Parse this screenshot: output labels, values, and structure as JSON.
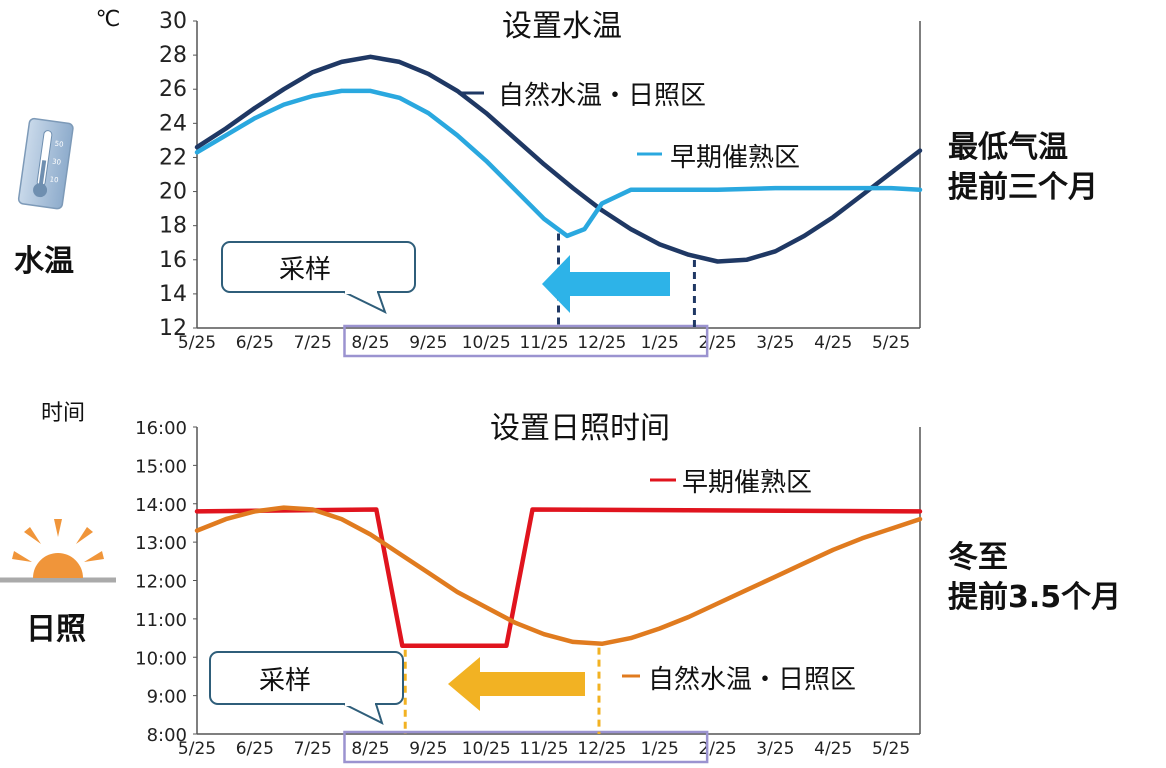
{
  "panels": {
    "top": {
      "unit_label": "℃",
      "side_label": "水温",
      "note_line1": "最低气温",
      "note_line2": "提前三个月",
      "callout": "采样"
    },
    "bottom": {
      "unit_label": "时间",
      "side_label": "日照",
      "note_line1": "冬至",
      "note_line2": "提前3.5个月",
      "callout": "采样"
    }
  },
  "colors": {
    "navy": "#1f3864",
    "light_blue": "#2aa8df",
    "red": "#e0141e",
    "orange": "#e07b1f",
    "blue_arrow": "#2db3e8",
    "yellow_arrow": "#f2b223",
    "callout_border": "#2f5e7a",
    "highlight_box": "#9b93d0",
    "thermo_blue": "#9cb8d4",
    "sun_orange": "#f0953a"
  },
  "icons": {
    "top": "thermometer-icon",
    "bottom": "sun-icon"
  },
  "chart_data": [
    {
      "type": "line",
      "title": "设置水温",
      "ylabel": "℃",
      "categories": [
        "5/25",
        "6/25",
        "7/25",
        "8/25",
        "9/25",
        "10/25",
        "11/25",
        "12/25",
        "1/25",
        "2/25",
        "3/25",
        "4/25",
        "5/25"
      ],
      "y_ticks": [
        "12",
        "14",
        "16",
        "18",
        "20",
        "22",
        "24",
        "26",
        "28",
        "30"
      ],
      "ylim": [
        12,
        30
      ],
      "series": [
        {
          "name": "自然水温・日照区",
          "color": "#1f3864",
          "x": [
            0,
            0.5,
            1,
            1.5,
            2,
            2.5,
            3,
            3.5,
            4,
            4.5,
            5,
            5.5,
            6,
            6.5,
            7,
            7.5,
            8,
            8.5,
            9,
            9.5,
            10,
            10.5,
            11,
            11.5,
            12,
            12.5
          ],
          "values": [
            22.6,
            23.7,
            24.9,
            26.0,
            27.0,
            27.6,
            27.9,
            27.6,
            26.9,
            25.9,
            24.6,
            23.1,
            21.6,
            20.2,
            18.9,
            17.8,
            16.9,
            16.3,
            15.9,
            16.0,
            16.5,
            17.4,
            18.5,
            19.8,
            21.1,
            22.4
          ]
        },
        {
          "name": "早期催熟区",
          "color": "#2aa8df",
          "x": [
            0,
            0.5,
            1,
            1.5,
            2,
            2.5,
            3,
            3.5,
            4,
            4.5,
            5,
            5.5,
            6,
            6.4,
            6.7,
            7,
            7.5,
            8,
            9,
            10,
            11,
            12,
            12.5
          ],
          "values": [
            22.3,
            23.3,
            24.3,
            25.1,
            25.6,
            25.9,
            25.9,
            25.5,
            24.6,
            23.3,
            21.8,
            20.1,
            18.4,
            17.4,
            17.8,
            19.3,
            20.1,
            20.1,
            20.1,
            20.2,
            20.2,
            20.2,
            20.1
          ]
        }
      ],
      "min_markers": [
        6.25,
        8.6
      ],
      "sampling_range": [
        2.55,
        8.82
      ]
    },
    {
      "type": "line",
      "title": "设置日照时间",
      "ylabel": "时间",
      "categories": [
        "5/25",
        "6/25",
        "7/25",
        "8/25",
        "9/25",
        "10/25",
        "11/25",
        "12/25",
        "1/25",
        "2/25",
        "3/25",
        "4/25",
        "5/25"
      ],
      "y_ticks": [
        "8:00",
        "9:00",
        "10:00",
        "11:00",
        "12:00",
        "13:00",
        "14:00",
        "15:00",
        "16:00"
      ],
      "ylim": [
        8,
        16
      ],
      "series": [
        {
          "name": "早期催熟区",
          "color": "#e0141e",
          "x": [
            0,
            3.1,
            3.55,
            5.35,
            5.8,
            12.5
          ],
          "values": [
            13.8,
            13.85,
            10.3,
            10.3,
            13.85,
            13.8
          ]
        },
        {
          "name": "自然水温・日照区",
          "color": "#e07b1f",
          "x": [
            0,
            0.5,
            1,
            1.5,
            2,
            2.5,
            3,
            3.5,
            4,
            4.5,
            5,
            5.5,
            6,
            6.5,
            7,
            7.5,
            8,
            8.5,
            9,
            9.5,
            10,
            10.5,
            11,
            11.5,
            12,
            12.5
          ],
          "values": [
            13.3,
            13.6,
            13.8,
            13.9,
            13.85,
            13.6,
            13.2,
            12.7,
            12.2,
            11.7,
            11.3,
            10.9,
            10.6,
            10.4,
            10.35,
            10.5,
            10.75,
            11.05,
            11.4,
            11.75,
            12.1,
            12.45,
            12.8,
            13.1,
            13.35,
            13.6
          ]
        }
      ],
      "min_markers": [
        3.6,
        6.95
      ],
      "sampling_range": [
        2.55,
        8.82
      ]
    }
  ]
}
